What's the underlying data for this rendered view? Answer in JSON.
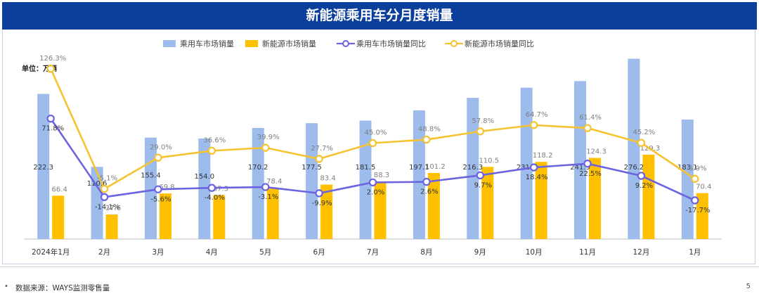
{
  "header": {
    "title": "新能源乘用车分月度销量"
  },
  "chart_data": {
    "type": "bar",
    "unit_label": "单位：万辆",
    "categories": [
      "2024年1月",
      "2月",
      "3月",
      "4月",
      "5月",
      "6月",
      "7月",
      "8月",
      "9月",
      "10月",
      "11月",
      "12月",
      "1月"
    ],
    "series": [
      {
        "name": "乘用车市场销量",
        "kind": "bar",
        "axis": "left",
        "color": "#9dbbeb",
        "values": [
          222.3,
          110.6,
          155.4,
          154.0,
          170.2,
          177.5,
          181.5,
          197.1,
          216.3,
          231.9,
          241.9,
          276.2,
          183.1
        ],
        "labels": [
          "222.3",
          "110.6",
          "155.4",
          "154.0",
          "170.2",
          "177.5",
          "181.5",
          "197.1",
          "216.3",
          "231.9",
          "241.9",
          "276.2",
          "183.1"
        ]
      },
      {
        "name": "新能源市场销量",
        "kind": "bar",
        "axis": "left",
        "color": "#ffc000",
        "values": [
          66.4,
          37.6,
          69.8,
          67.3,
          78.4,
          83.4,
          88.3,
          101.2,
          110.5,
          118.2,
          124.3,
          129.3,
          70.4
        ],
        "labels": [
          "66.4",
          "37.6",
          "69.8",
          "67.3",
          "78.4",
          "83.4",
          "88.3",
          "101.2",
          "110.5",
          "118.2",
          "124.3",
          "129.3",
          "70.4"
        ]
      },
      {
        "name": "乘用车市场销量同比",
        "kind": "line",
        "axis": "right",
        "color": "#6b63e0",
        "values": [
          71.8,
          -14.1,
          -5.6,
          -4.0,
          -3.1,
          -9.9,
          2.0,
          2.6,
          9.7,
          18.4,
          22.5,
          9.2,
          -17.7
        ],
        "labels": [
          "71.8%",
          "-14.1%",
          "-5.6%",
          "-4.0%",
          "-3.1%",
          "-9.9%",
          "2.0%",
          "2.6%",
          "9.7%",
          "18.4%",
          "22.5%",
          "9.2%",
          "-17.7%"
        ]
      },
      {
        "name": "新能源市场销量同比",
        "kind": "line",
        "axis": "right",
        "color": "#f4c430",
        "values": [
          126.3,
          -5.1,
          29.0,
          36.6,
          39.9,
          27.7,
          45.0,
          48.8,
          57.8,
          64.7,
          61.4,
          45.2,
          5.9
        ],
        "labels": [
          "126.3%",
          "-5.1%",
          "29.0%",
          "36.6%",
          "39.9%",
          "27.7%",
          "45.0%",
          "48.8%",
          "57.8%",
          "64.7%",
          "61.4%",
          "45.2%",
          "5.9%"
        ]
      }
    ],
    "ylim_left": [
      0,
      280
    ],
    "ylim_right": [
      -60,
      140
    ],
    "grid": false,
    "legend": "top"
  },
  "footer": {
    "bullet": "•",
    "source": "数据来源：WAYS监测零售量",
    "page": "5"
  }
}
